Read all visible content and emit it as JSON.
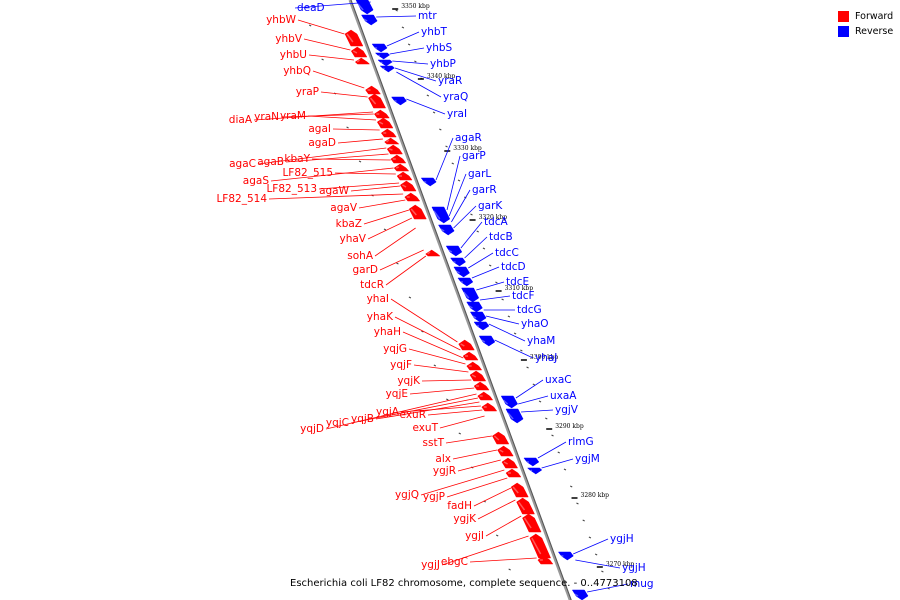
{
  "caption": "Escherichia coli LF82 chromosome, complete sequence. - 0..4773108",
  "legend": [
    {
      "label": "Forward",
      "color": "#ff0000"
    },
    {
      "label": "Reverse",
      "color": "#0000ff"
    }
  ],
  "colors": {
    "forward": "#ff0000",
    "reverse": "#0000ff",
    "backbone": "#888888"
  },
  "ticks": [
    "3350 kbp",
    "3340 kbp",
    "3330 kbp",
    "3320 kbp",
    "3310 kbp",
    "3300 kbp",
    "3290 kbp",
    "3280 kbp",
    "3270 kbp"
  ],
  "forward_genes": [
    "yhbW",
    "yhbV",
    "yhbU",
    "yhbQ",
    "yraP",
    "diaA",
    "yraN",
    "yraM",
    "agaI",
    "agaD",
    "agaC",
    "agaB",
    "kbaY",
    "agaS",
    "LF82_515",
    "LF82_513",
    "agaW",
    "LF82_514",
    "agaV",
    "kbaZ",
    "yhaV",
    "sohA",
    "garD",
    "tdcR",
    "yhaI",
    "yhaK",
    "yhaH",
    "yqjG",
    "yqjF",
    "yqjK",
    "yqjE",
    "yqjD",
    "yqjC",
    "yqjB",
    "yqjA",
    "exuR",
    "exuT",
    "sstT",
    "alx",
    "ygjR",
    "ygjQ",
    "ygjP",
    "fadH",
    "ygjK",
    "ygjI",
    "ygjJ",
    "ebgC"
  ],
  "reverse_genes": [
    "deaD",
    "mtr",
    "yhbT",
    "yhbS",
    "yhbP",
    "yraR",
    "yraQ",
    "yraI",
    "agaR",
    "garP",
    "garL",
    "garR",
    "garK",
    "tdcA",
    "tdcB",
    "tdcC",
    "tdcD",
    "tdcE",
    "tdcF",
    "tdcG",
    "yhaO",
    "yhaM",
    "yhaJ",
    "uxaC",
    "uxaA",
    "ygjV",
    "rlmG",
    "ygjM",
    "ygjH",
    "ygjH",
    "mug"
  ]
}
